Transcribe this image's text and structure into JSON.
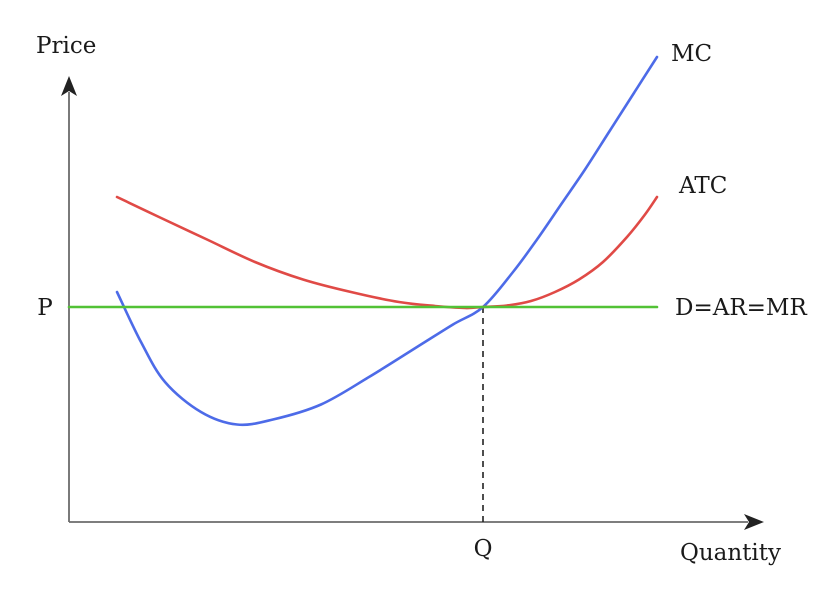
{
  "chart_data": {
    "type": "line",
    "title": "",
    "xlabel": "Quantity",
    "ylabel": "Price",
    "grid": false,
    "xlim": [
      0,
      10
    ],
    "ylim": [
      0,
      10
    ],
    "x_tick_labels": [
      {
        "x": 6.9,
        "label": "Q"
      }
    ],
    "y_tick_labels": [
      {
        "y": 4.3,
        "label": "P"
      }
    ],
    "guide_lines": [
      {
        "style": "dashed",
        "x": 6.9,
        "from_y": 0,
        "to_y": 4.3
      }
    ],
    "series": [
      {
        "name": "MC",
        "color": "#4d6be8",
        "x": [
          0.8,
          1.2,
          1.6,
          2.2,
          2.8,
          3.4,
          4.2,
          5.0,
          5.8,
          6.4,
          6.9,
          7.4,
          7.8,
          8.2,
          8.6,
          9.0,
          9.4,
          9.8
        ],
        "y": [
          4.6,
          3.6,
          2.8,
          2.2,
          1.95,
          2.05,
          2.35,
          2.9,
          3.5,
          3.95,
          4.3,
          5.0,
          5.65,
          6.35,
          7.05,
          7.8,
          8.55,
          9.3
        ]
      },
      {
        "name": "ATC",
        "color": "#e04a46",
        "x": [
          0.8,
          1.5,
          2.3,
          3.1,
          3.9,
          4.7,
          5.5,
          6.1,
          6.6,
          6.9,
          7.3,
          7.7,
          8.1,
          8.5,
          8.9,
          9.3,
          9.6,
          9.8
        ],
        "y": [
          6.5,
          6.1,
          5.65,
          5.2,
          4.85,
          4.6,
          4.4,
          4.32,
          4.28,
          4.3,
          4.33,
          4.42,
          4.6,
          4.85,
          5.2,
          5.7,
          6.15,
          6.5
        ]
      },
      {
        "name": "D=AR=MR",
        "color": "#52c236",
        "x": [
          0,
          9.8
        ],
        "y": [
          4.3,
          4.3
        ]
      }
    ]
  }
}
